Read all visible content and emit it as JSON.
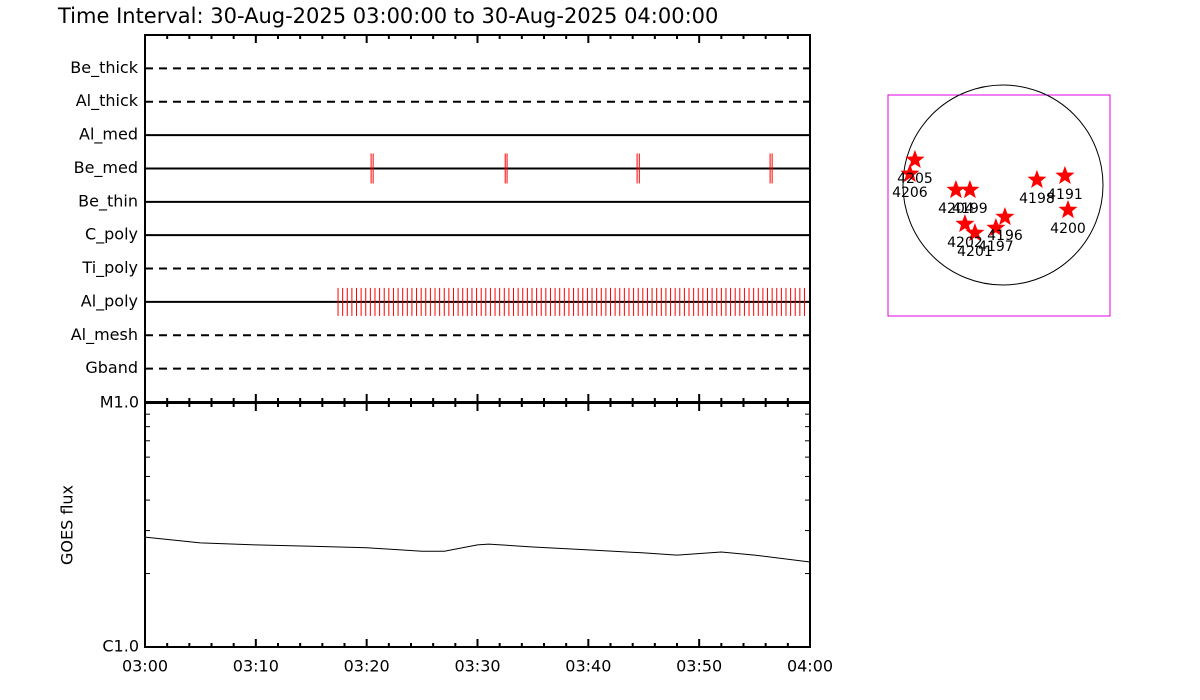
{
  "title": "Time Interval: 30-Aug-2025 03:00:00 to 30-Aug-2025 04:00:00",
  "chart_data": [
    {
      "type": "timeline",
      "categories": [
        "Be_thick",
        "Al_thick",
        "Al_med",
        "Be_med",
        "Be_thin",
        "C_poly",
        "Ti_poly",
        "Al_poly",
        "Al_mesh",
        "Gband"
      ],
      "line_styles": [
        "dashed",
        "dashed",
        "solid",
        "solid",
        "solid",
        "solid",
        "dashed",
        "solid",
        "dashed",
        "dashed"
      ],
      "color": "#ff0000",
      "events": [
        [],
        [],
        [],
        [
          "03:20:24",
          "03:20:35",
          "03:32:30",
          "03:32:40",
          "03:44:24",
          "03:44:36",
          "03:56:24",
          "03:56:35"
        ],
        [],
        [],
        [],
        [
          "03:17:25",
          "03:17:50",
          "03:18:15",
          "03:18:40",
          "03:19:05",
          "03:19:30",
          "03:19:55",
          "03:20:20",
          "03:20:45",
          "03:21:10",
          "03:21:35",
          "03:22:00",
          "03:22:25",
          "03:22:50",
          "03:23:15",
          "03:23:40",
          "03:24:05",
          "03:24:30",
          "03:24:55",
          "03:25:20",
          "03:25:45",
          "03:26:10",
          "03:26:35",
          "03:27:00",
          "03:27:25",
          "03:27:50",
          "03:28:15",
          "03:28:40",
          "03:29:05",
          "03:29:30",
          "03:29:55",
          "03:30:20",
          "03:30:45",
          "03:31:10",
          "03:31:35",
          "03:32:00",
          "03:32:25",
          "03:32:50",
          "03:33:15",
          "03:33:40",
          "03:34:05",
          "03:34:30",
          "03:34:55",
          "03:35:20",
          "03:35:45",
          "03:36:10",
          "03:36:35",
          "03:37:00",
          "03:37:25",
          "03:37:50",
          "03:38:15",
          "03:38:40",
          "03:39:05",
          "03:39:30",
          "03:39:55",
          "03:40:20",
          "03:40:45",
          "03:41:10",
          "03:41:35",
          "03:42:00",
          "03:42:25",
          "03:42:50",
          "03:43:15",
          "03:43:40",
          "03:44:05",
          "03:44:30",
          "03:44:55",
          "03:45:20",
          "03:45:45",
          "03:46:10",
          "03:46:35",
          "03:47:00",
          "03:47:25",
          "03:47:50",
          "03:48:15",
          "03:48:40",
          "03:49:05",
          "03:49:30",
          "03:49:55",
          "03:50:20",
          "03:50:45",
          "03:51:10",
          "03:51:35",
          "03:52:00",
          "03:52:25",
          "03:52:50",
          "03:53:15",
          "03:53:40",
          "03:54:05",
          "03:54:30",
          "03:54:55",
          "03:55:20",
          "03:55:45",
          "03:56:10",
          "03:56:35",
          "03:57:00",
          "03:57:25",
          "03:57:50",
          "03:58:15",
          "03:58:40",
          "03:59:05",
          "03:59:30"
        ],
        [],
        []
      ]
    },
    {
      "type": "line",
      "y_label": "GOES flux",
      "x": [
        "03:00",
        "03:05",
        "03:10",
        "03:15",
        "03:20",
        "03:25",
        "03:27",
        "03:30",
        "03:31",
        "03:35",
        "03:40",
        "03:45",
        "03:48",
        "03:52",
        "03:55",
        "04:00"
      ],
      "values": [
        2.82e-06,
        2.67e-06,
        2.62e-06,
        2.59e-06,
        2.55e-06,
        2.47e-06,
        2.47e-06,
        2.62e-06,
        2.64e-06,
        2.57e-06,
        2.5e-06,
        2.43e-06,
        2.38e-06,
        2.45e-06,
        2.38e-06,
        2.23e-06
      ],
      "color": "#000000",
      "log_y": true,
      "xlim": [
        "03:00",
        "04:00"
      ],
      "xticks": [
        "03:00",
        "03:10",
        "03:20",
        "03:30",
        "03:40",
        "03:50",
        "04:00"
      ],
      "minor_xticks": [
        "03:02",
        "03:04",
        "03:06",
        "03:08",
        "03:12",
        "03:14",
        "03:16",
        "03:18",
        "03:22",
        "03:24",
        "03:26",
        "03:28",
        "03:32",
        "03:34",
        "03:36",
        "03:38",
        "03:42",
        "03:44",
        "03:46",
        "03:48",
        "03:52",
        "03:54",
        "03:56",
        "03:58"
      ],
      "ylim": [
        1e-06,
        1e-05
      ],
      "yticks": [
        {
          "value": 1e-06,
          "label": "C1.0"
        },
        {
          "value": 1e-05,
          "label": "M1.0"
        }
      ],
      "minor_yticks": [
        2e-06,
        3e-06,
        4e-06,
        5e-06,
        6e-06,
        7e-06,
        8e-06,
        9e-06
      ]
    },
    {
      "type": "scatter",
      "color": "#ff0000",
      "x": [
        -836,
        -884,
        -447,
        -314,
        -361,
        -266,
        -67,
        19,
        323,
        589,
        618
      ],
      "values": [
        238,
        105,
        -48,
        -48,
        -371,
        -456,
        -409,
        -304,
        48,
        86,
        -238
      ],
      "point_labels": [
        "4205",
        "4206",
        "4204",
        "4199",
        "4202",
        "4201",
        "4197",
        "4196",
        "4198",
        "4191",
        "4200"
      ],
      "xlim": [
        -1092,
        1017
      ],
      "ylim": [
        -1245,
        855
      ]
    }
  ]
}
